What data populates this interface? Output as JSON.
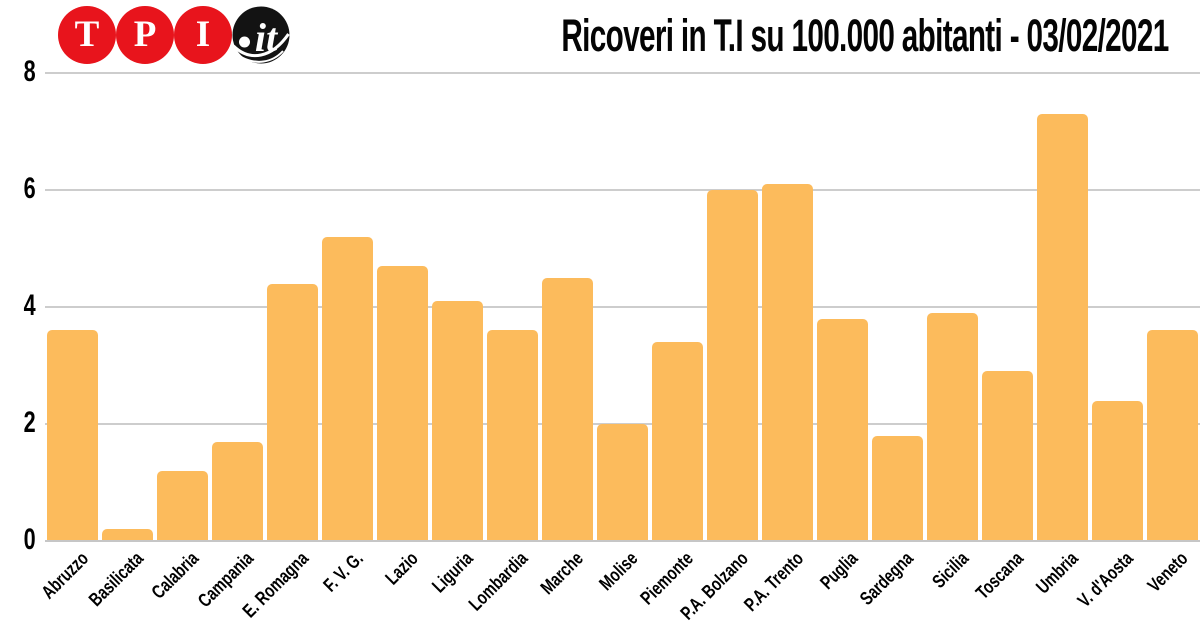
{
  "logo": {
    "letters": [
      "T",
      "P",
      "I"
    ],
    "tld": "it",
    "red_circle_color": "#E8141C",
    "black_circle_color": "#131313",
    "letter_color": "#FFFFFF"
  },
  "header": {
    "title": "Ricoveri in T.I su 100.000 abitanti - 03/02/2021"
  },
  "chart_data": {
    "type": "bar",
    "title": "Ricoveri in T.I su 100.000 abitanti - 03/02/2021",
    "categories": [
      "Abruzzo",
      "Basilicata",
      "Calabria",
      "Campania",
      "E. Romagna",
      "F. V. G.",
      "Lazio",
      "Liguria",
      "Lombardia",
      "Marche",
      "Molise",
      "Piemonte",
      "P.A. Bolzano",
      "P.A. Trento",
      "Puglia",
      "Sardegna",
      "Sicilia",
      "Toscana",
      "Umbria",
      "V. d'Aosta",
      "Veneto"
    ],
    "values": [
      3.6,
      0.2,
      1.2,
      1.7,
      4.4,
      5.2,
      4.7,
      4.1,
      3.6,
      4.5,
      2.0,
      3.4,
      6.0,
      6.1,
      3.8,
      1.8,
      3.9,
      2.9,
      7.3,
      2.4,
      3.6
    ],
    "xlabel": "",
    "ylabel": "",
    "ylim": [
      0,
      8
    ],
    "yticks": [
      0,
      2,
      4,
      6,
      8
    ],
    "grid": true,
    "legend": false,
    "bar_color": "#FCBB5C",
    "grid_color": "#CDCDCD",
    "baseline_color": "#C6C6C6",
    "text_color": "#000000"
  }
}
